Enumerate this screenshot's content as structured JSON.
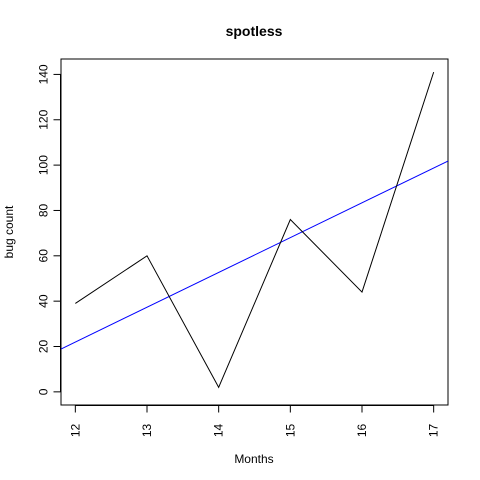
{
  "chart_data": {
    "type": "line",
    "title": "spotless",
    "xlabel": "Months",
    "ylabel": "bug count",
    "x": [
      12,
      13,
      14,
      15,
      16,
      17
    ],
    "series": [
      {
        "values": [
          39,
          60,
          2,
          76,
          44,
          141
        ],
        "color": "#000000"
      }
    ],
    "trend_line": {
      "color": "#0000ff",
      "at_x_start": 18.9,
      "at_x_end": 101.8,
      "x_start": 11.8,
      "x_end": 17.2
    },
    "xlim": [
      11.8,
      17.2
    ],
    "ylim": [
      -5.8,
      146.8
    ],
    "x_ticks": [
      12,
      13,
      14,
      15,
      16,
      17
    ],
    "y_ticks": [
      0,
      20,
      40,
      60,
      80,
      100,
      120,
      140
    ],
    "grid": false,
    "legend": "none"
  }
}
